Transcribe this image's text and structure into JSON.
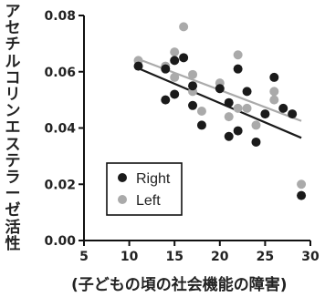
{
  "chart_data": {
    "type": "scatter",
    "xlabel": "(子どもの頃の社会機能の障害)",
    "ylabel": "アセチルコリンエステラーゼ活性",
    "xlim": [
      5,
      30
    ],
    "ylim": [
      0.0,
      0.08
    ],
    "xticks": [
      5,
      10,
      15,
      20,
      25,
      30
    ],
    "yticks": [
      0.0,
      0.02,
      0.04,
      0.06,
      0.08
    ],
    "ytick_labels": [
      "0.00",
      "0.02",
      "0.04",
      "0.06",
      "0.08"
    ],
    "grid": false,
    "legend_position": "bottom-left",
    "series": [
      {
        "name": "Right",
        "color": "#1a1a1a",
        "points": [
          [
            11,
            0.062
          ],
          [
            14,
            0.05
          ],
          [
            14,
            0.061
          ],
          [
            15,
            0.052
          ],
          [
            15,
            0.064
          ],
          [
            16,
            0.065
          ],
          [
            17,
            0.055
          ],
          [
            17,
            0.048
          ],
          [
            18,
            0.041
          ],
          [
            20,
            0.054
          ],
          [
            21,
            0.037
          ],
          [
            21,
            0.049
          ],
          [
            22,
            0.061
          ],
          [
            22,
            0.039
          ],
          [
            23,
            0.053
          ],
          [
            24,
            0.035
          ],
          [
            25,
            0.045
          ],
          [
            26,
            0.058
          ],
          [
            27,
            0.047
          ],
          [
            28,
            0.045
          ],
          [
            29,
            0.016
          ]
        ],
        "trend": [
          [
            11,
            0.0612
          ],
          [
            29,
            0.0365
          ]
        ]
      },
      {
        "name": "Left",
        "color": "#aaaaaa",
        "points": [
          [
            11,
            0.064
          ],
          [
            14,
            0.062
          ],
          [
            15,
            0.067
          ],
          [
            15,
            0.058
          ],
          [
            16,
            0.076
          ],
          [
            17,
            0.059
          ],
          [
            17,
            0.053
          ],
          [
            18,
            0.046
          ],
          [
            20,
            0.056
          ],
          [
            21,
            0.044
          ],
          [
            22,
            0.066
          ],
          [
            22,
            0.047
          ],
          [
            23,
            0.047
          ],
          [
            24,
            0.041
          ],
          [
            26,
            0.05
          ],
          [
            26,
            0.053
          ],
          [
            29,
            0.02
          ]
        ],
        "trend": [
          [
            11,
            0.0645
          ],
          [
            29,
            0.0425
          ]
        ]
      }
    ]
  }
}
